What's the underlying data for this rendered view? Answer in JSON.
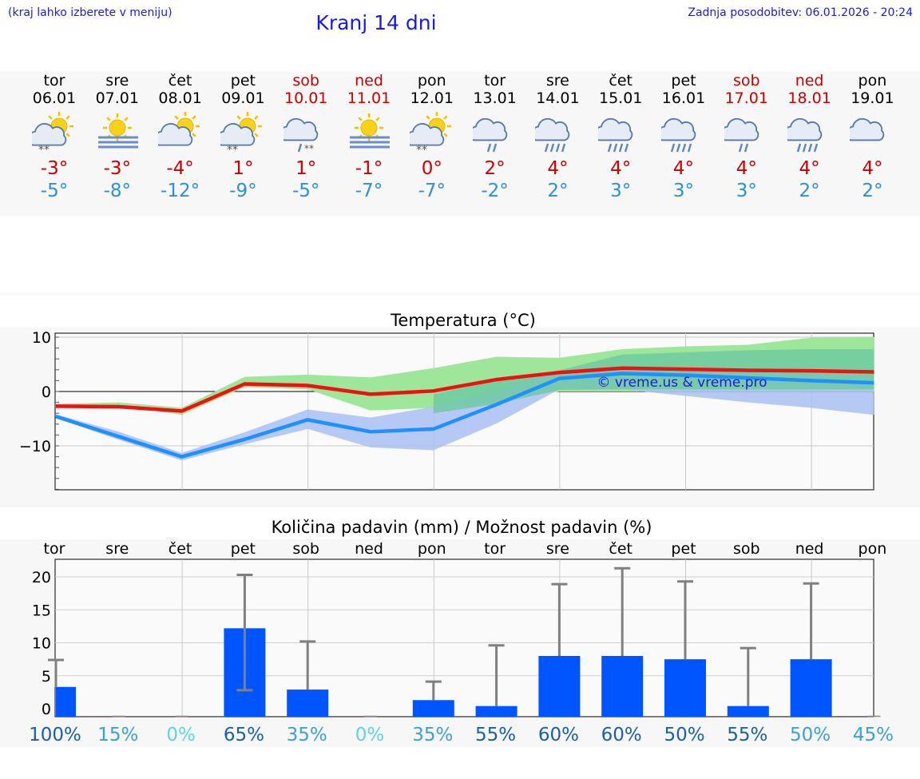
{
  "header": {
    "hint": "(kraj lahko izberete v meniju)",
    "title": "Kranj 14 dni",
    "updated": "Zadnja posodobitev: 06.01.2026 - 20:24"
  },
  "days": [
    {
      "name": "tor",
      "date": "06.01",
      "weekend": false,
      "icon": "partly-sunny-snow-icon",
      "max": "-3°",
      "min": "-5°"
    },
    {
      "name": "sre",
      "date": "07.01",
      "weekend": false,
      "icon": "sun-fog-icon",
      "max": "-3°",
      "min": "-8°"
    },
    {
      "name": "čet",
      "date": "08.01",
      "weekend": false,
      "icon": "partly-sunny-icon",
      "max": "-4°",
      "min": "-12°"
    },
    {
      "name": "pet",
      "date": "09.01",
      "weekend": false,
      "icon": "partly-sunny-snow-icon",
      "max": "1°",
      "min": "-9°"
    },
    {
      "name": "sob",
      "date": "10.01",
      "weekend": true,
      "icon": "cloud-sleet-icon",
      "max": "1°",
      "min": "-5°"
    },
    {
      "name": "ned",
      "date": "11.01",
      "weekend": true,
      "icon": "sun-fog-icon",
      "max": "-1°",
      "min": "-7°"
    },
    {
      "name": "pon",
      "date": "12.01",
      "weekend": false,
      "icon": "partly-sunny-snow-icon",
      "max": "0°",
      "min": "-7°"
    },
    {
      "name": "tor",
      "date": "13.01",
      "weekend": false,
      "icon": "cloud-light-rain-icon",
      "max": "2°",
      "min": "-2°"
    },
    {
      "name": "sre",
      "date": "14.01",
      "weekend": false,
      "icon": "cloud-rain-icon",
      "max": "4°",
      "min": "2°"
    },
    {
      "name": "čet",
      "date": "15.01",
      "weekend": false,
      "icon": "cloud-rain-icon",
      "max": "4°",
      "min": "3°"
    },
    {
      "name": "pet",
      "date": "16.01",
      "weekend": false,
      "icon": "cloud-rain-icon",
      "max": "4°",
      "min": "3°"
    },
    {
      "name": "sob",
      "date": "17.01",
      "weekend": true,
      "icon": "cloud-light-rain-icon",
      "max": "4°",
      "min": "3°"
    },
    {
      "name": "ned",
      "date": "18.01",
      "weekend": true,
      "icon": "cloud-rain-icon",
      "max": "4°",
      "min": "2°"
    },
    {
      "name": "pon",
      "date": "19.01",
      "weekend": false,
      "icon": "cloudy-icon",
      "max": "4°",
      "min": "2°"
    }
  ],
  "colors": {
    "link_blue": "#1a1ae0",
    "max_red": "#cc0000",
    "min_blue": "#2b8fe0",
    "max_line": "#ee1111",
    "min_line": "#1e90ff",
    "max_band": "#9ee69a",
    "max_band_inner": "#6cc9a0",
    "min_band": "#a9c0f2",
    "bar": "#0055ff",
    "whisker": "#808080"
  },
  "chart_data": [
    {
      "type": "line",
      "title": "Temperatura (°C)",
      "ylabel": "°C",
      "ylim": [
        -18,
        10.5
      ],
      "yticks": [
        10,
        0,
        -10
      ],
      "x": [
        0,
        1,
        2,
        3,
        4,
        5,
        6,
        7,
        8,
        9,
        10,
        11,
        12,
        13
      ],
      "watermark": "© vreme.us & vreme.pro",
      "series": [
        {
          "name": "max",
          "values": [
            -2.7,
            -2.8,
            -3.6,
            1.4,
            1.1,
            -0.5,
            0.1,
            2.2,
            3.5,
            4.3,
            4.1,
            3.9,
            3.8,
            3.6
          ],
          "band_low": [
            -2.9,
            -2.5,
            -4.3,
            0.8,
            0.4,
            -3.5,
            -3.0,
            -1.5,
            0,
            0,
            0,
            0,
            0,
            0
          ],
          "band_high": [
            -2.3,
            -2.0,
            -3.0,
            2.7,
            3.1,
            2.6,
            4.3,
            6.4,
            6.2,
            7.8,
            8.3,
            8.6,
            9.9,
            10.0
          ],
          "inner_low": [
            null,
            null,
            null,
            null,
            null,
            null,
            -4.0,
            -2.3,
            0.3,
            0.4,
            0.4,
            0.4,
            0.4,
            0.4
          ],
          "inner_high": [
            null,
            null,
            null,
            null,
            null,
            null,
            -0.5,
            2.0,
            3.9,
            6.8,
            7.2,
            7.6,
            7.8,
            7.8
          ]
        },
        {
          "name": "min",
          "values": [
            -4.6,
            -8.3,
            -12.0,
            -8.8,
            -5.2,
            -7.4,
            -6.9,
            -2.4,
            2.4,
            3.3,
            3.0,
            2.5,
            2.0,
            1.6
          ],
          "band_low": [
            -4.9,
            -8.9,
            -12.7,
            -9.7,
            -6.9,
            -10.3,
            -10.8,
            -5.9,
            0.4,
            0.4,
            -0.8,
            -2.0,
            -3.0,
            -4.3
          ],
          "band_high": [
            -4.2,
            -7.4,
            -11.3,
            -7.5,
            -3.3,
            -4.8,
            -2.8,
            0.3,
            4.0,
            4.6,
            4.2,
            3.8,
            3.2,
            2.8
          ]
        }
      ]
    },
    {
      "type": "bar",
      "title": "Količina padavin (mm) / Možnost padavin (%)",
      "categories": [
        "tor",
        "sre",
        "čet",
        "pet",
        "sob",
        "ned",
        "pon",
        "tor",
        "sre",
        "čet",
        "pet",
        "sob",
        "ned",
        "pon"
      ],
      "values": [
        3.3,
        0,
        0,
        12.2,
        2.9,
        0,
        1.3,
        0.4,
        8.0,
        8.0,
        7.5,
        0.4,
        7.5,
        0
      ],
      "whisker_high": [
        7.4,
        null,
        null,
        20.3,
        10.2,
        null,
        4.1,
        9.6,
        18.9,
        21.3,
        19.3,
        9.2,
        19.0,
        null
      ],
      "whisker_low": [
        null,
        null,
        null,
        2.8,
        null,
        null,
        null,
        null,
        null,
        null,
        null,
        null,
        null,
        null
      ],
      "probability": [
        "100%",
        "15%",
        "0%",
        "65%",
        "35%",
        "0%",
        "35%",
        "55%",
        "60%",
        "60%",
        "50%",
        "55%",
        "50%",
        "45%"
      ],
      "prob_colors": [
        "#1b5fa8",
        "#3ca0d4",
        "#5dd4e4",
        "#1b5fa8",
        "#3ca0d4",
        "#5dd4e4",
        "#3ca0d4",
        "#1b5fa8",
        "#1b5fa8",
        "#1b5fa8",
        "#1b5fa8",
        "#1b5fa8",
        "#3ca0d4",
        "#3ca0d4"
      ],
      "ylim": [
        -1.5,
        23
      ],
      "yticks": [
        20,
        15,
        10,
        5,
        0
      ]
    }
  ]
}
